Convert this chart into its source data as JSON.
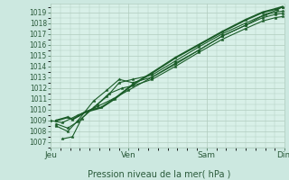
{
  "xlabel": "Pression niveau de la mer( hPa )",
  "bg_color": "#cce8e0",
  "plot_bg_color": "#d8f0e8",
  "grid_color": "#b0ccbe",
  "line_color": "#1a5c28",
  "xlim": [
    0,
    3
  ],
  "ylim": [
    1006.5,
    1019.8
  ],
  "yticks": [
    1007,
    1008,
    1009,
    1010,
    1011,
    1012,
    1013,
    1014,
    1015,
    1016,
    1017,
    1018,
    1019
  ],
  "xtick_labels": [
    "Jeu",
    "Ven",
    "Sam",
    "Dim"
  ],
  "xtick_positions": [
    0,
    1,
    2,
    3
  ],
  "lines": [
    {
      "x": [
        0.07,
        0.22,
        0.28,
        0.45,
        0.65,
        0.82,
        1.05,
        1.3,
        1.6,
        1.9,
        2.2,
        2.5,
        2.72,
        2.88,
        2.97
      ],
      "y": [
        1009.0,
        1009.3,
        1009.1,
        1009.8,
        1010.2,
        1011.0,
        1012.3,
        1013.4,
        1014.8,
        1016.0,
        1017.2,
        1018.3,
        1019.0,
        1019.3,
        1019.5
      ]
    },
    {
      "x": [
        0.07,
        0.22,
        0.35,
        0.55,
        0.72,
        0.88,
        1.05,
        1.3,
        1.6,
        1.9,
        2.2,
        2.5,
        2.72,
        2.88,
        2.97
      ],
      "y": [
        1008.7,
        1008.3,
        1008.9,
        1010.2,
        1011.2,
        1012.5,
        1012.8,
        1013.2,
        1014.5,
        1015.8,
        1017.0,
        1018.0,
        1018.7,
        1019.0,
        1019.1
      ]
    },
    {
      "x": [
        0.07,
        0.22,
        0.35,
        0.55,
        0.72,
        0.88,
        1.05,
        1.3,
        1.6,
        1.9,
        2.2,
        2.5,
        2.72,
        2.88,
        2.97
      ],
      "y": [
        1008.5,
        1008.0,
        1009.0,
        1010.8,
        1011.8,
        1012.8,
        1012.5,
        1013.0,
        1014.2,
        1015.5,
        1016.8,
        1017.8,
        1018.5,
        1018.8,
        1018.9
      ]
    },
    {
      "x": [
        0.15,
        0.28,
        0.4,
        0.6,
        0.75,
        0.92,
        1.05,
        1.3,
        1.6,
        1.9,
        2.2,
        2.5,
        2.72,
        2.88,
        2.97
      ],
      "y": [
        1007.3,
        1007.5,
        1009.2,
        1010.5,
        1011.5,
        1012.0,
        1012.2,
        1012.8,
        1014.0,
        1015.3,
        1016.5,
        1017.5,
        1018.2,
        1018.5,
        1018.6
      ]
    },
    {
      "x": [
        0.0,
        0.15,
        0.35,
        0.6,
        0.8,
        1.0,
        1.3,
        1.6,
        1.9,
        2.2,
        2.5,
        2.75,
        2.9,
        2.97
      ],
      "y": [
        1009.0,
        1008.8,
        1009.5,
        1010.3,
        1011.0,
        1011.8,
        1013.0,
        1014.3,
        1015.5,
        1016.8,
        1017.8,
        1018.8,
        1019.2,
        1019.5
      ]
    }
  ]
}
